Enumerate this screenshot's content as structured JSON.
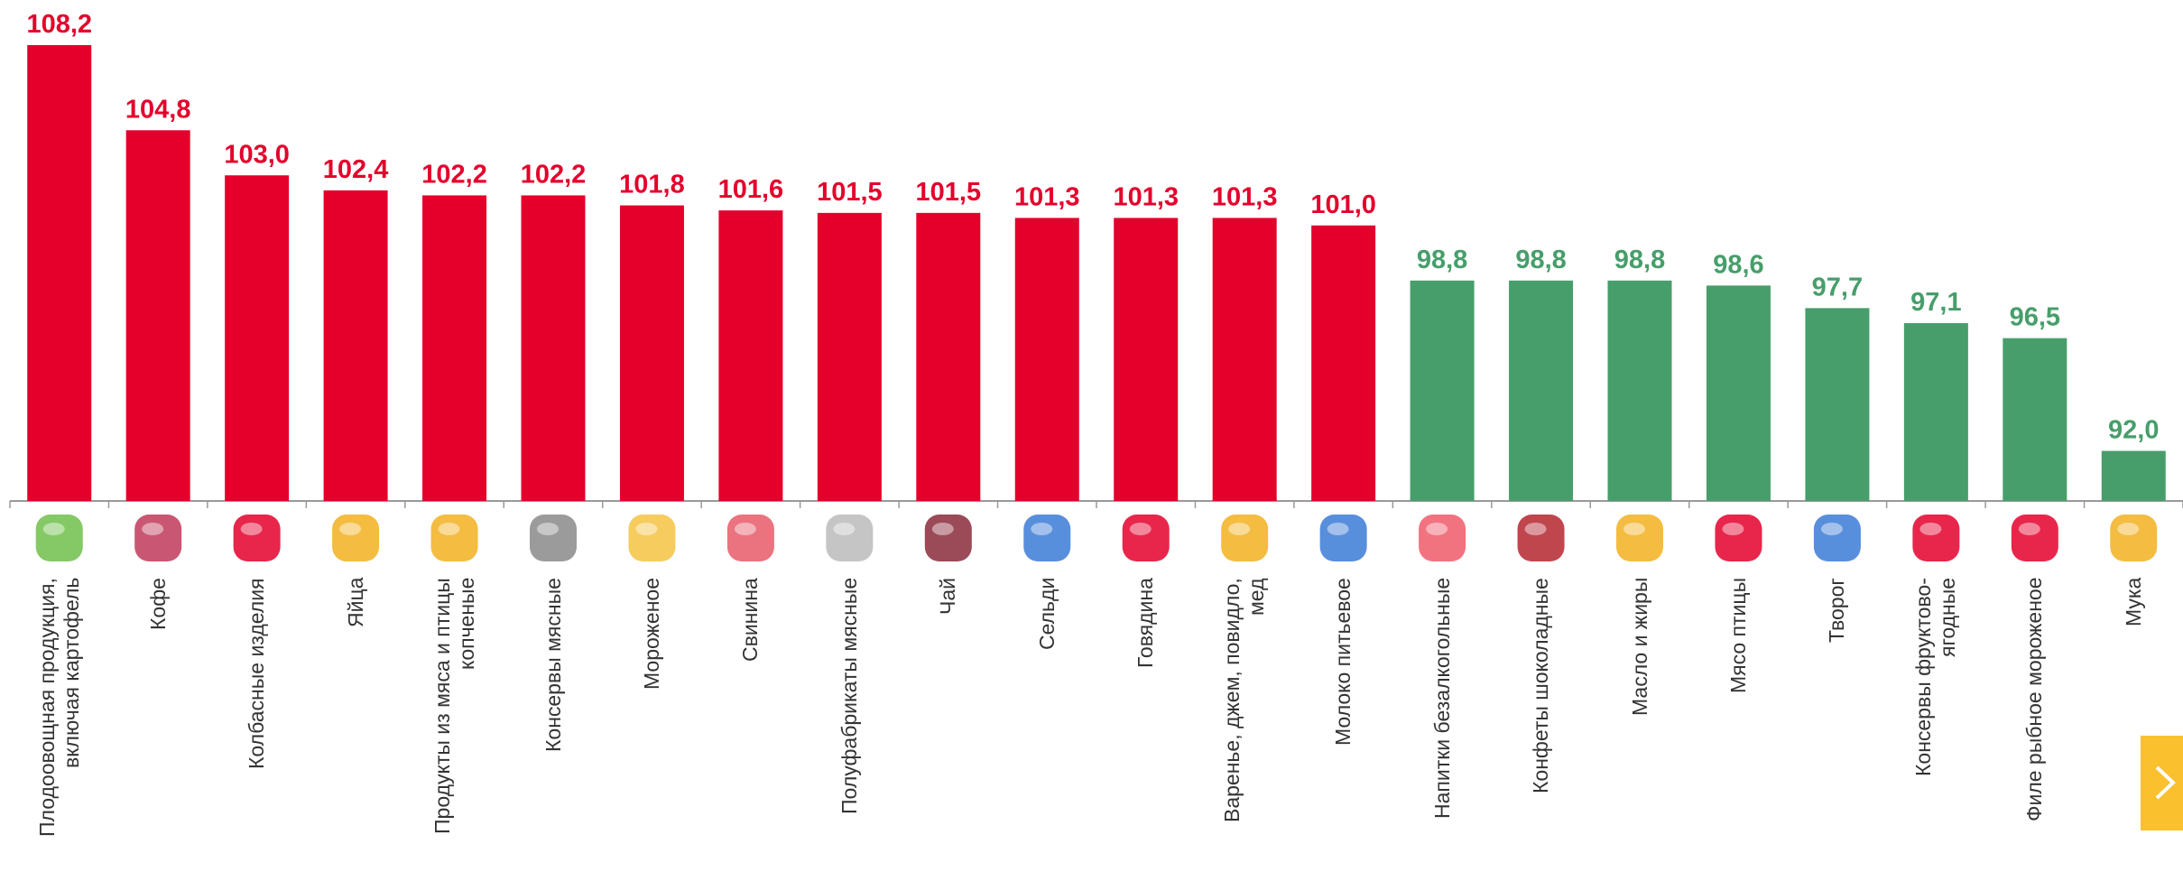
{
  "chart_data": {
    "type": "bar",
    "categories": [
      "Плодоовощная продукция,\nвключая картофель",
      "Кофе",
      "Колбасные изделия",
      "Яйца",
      "Продукты из мяса и птицы\nкопченые",
      "Консервы мясные",
      "Мороженое",
      "Свинина",
      "Полуфабрикаты мясные",
      "Чай",
      "Сельди",
      "Говядина",
      "Варенье, джем, повидло,\nмед",
      "Молоко питьевое",
      "Напитки безалкогольные",
      "Конфеты шоколадные",
      "Масло и жиры",
      "Мясо птицы",
      "Творог",
      "Консервы фруктово-\nягодные",
      "Филе рыбное мороженое",
      "Мука"
    ],
    "values": [
      108.2,
      104.8,
      103.0,
      102.4,
      102.2,
      102.2,
      101.8,
      101.6,
      101.5,
      101.5,
      101.3,
      101.3,
      101.3,
      101.0,
      98.8,
      98.8,
      98.8,
      98.6,
      97.7,
      97.1,
      96.5,
      92.0
    ],
    "value_labels": [
      "108,2",
      "104,8",
      "103,0",
      "102,4",
      "102,2",
      "102,2",
      "101,8",
      "101,6",
      "101,5",
      "101,5",
      "101,3",
      "101,3",
      "101,3",
      "101,0",
      "98,8",
      "98,8",
      "98,8",
      "98,6",
      "97,7",
      "97,1",
      "96,5",
      "92,0"
    ],
    "colors": [
      "#e4002b",
      "#e4002b",
      "#e4002b",
      "#e4002b",
      "#e4002b",
      "#e4002b",
      "#e4002b",
      "#e4002b",
      "#e4002b",
      "#e4002b",
      "#e4002b",
      "#e4002b",
      "#e4002b",
      "#e4002b",
      "#479e6a",
      "#479e6a",
      "#479e6a",
      "#479e6a",
      "#479e6a",
      "#479e6a",
      "#479e6a",
      "#479e6a"
    ],
    "ylim": [
      90,
      110
    ]
  }
}
